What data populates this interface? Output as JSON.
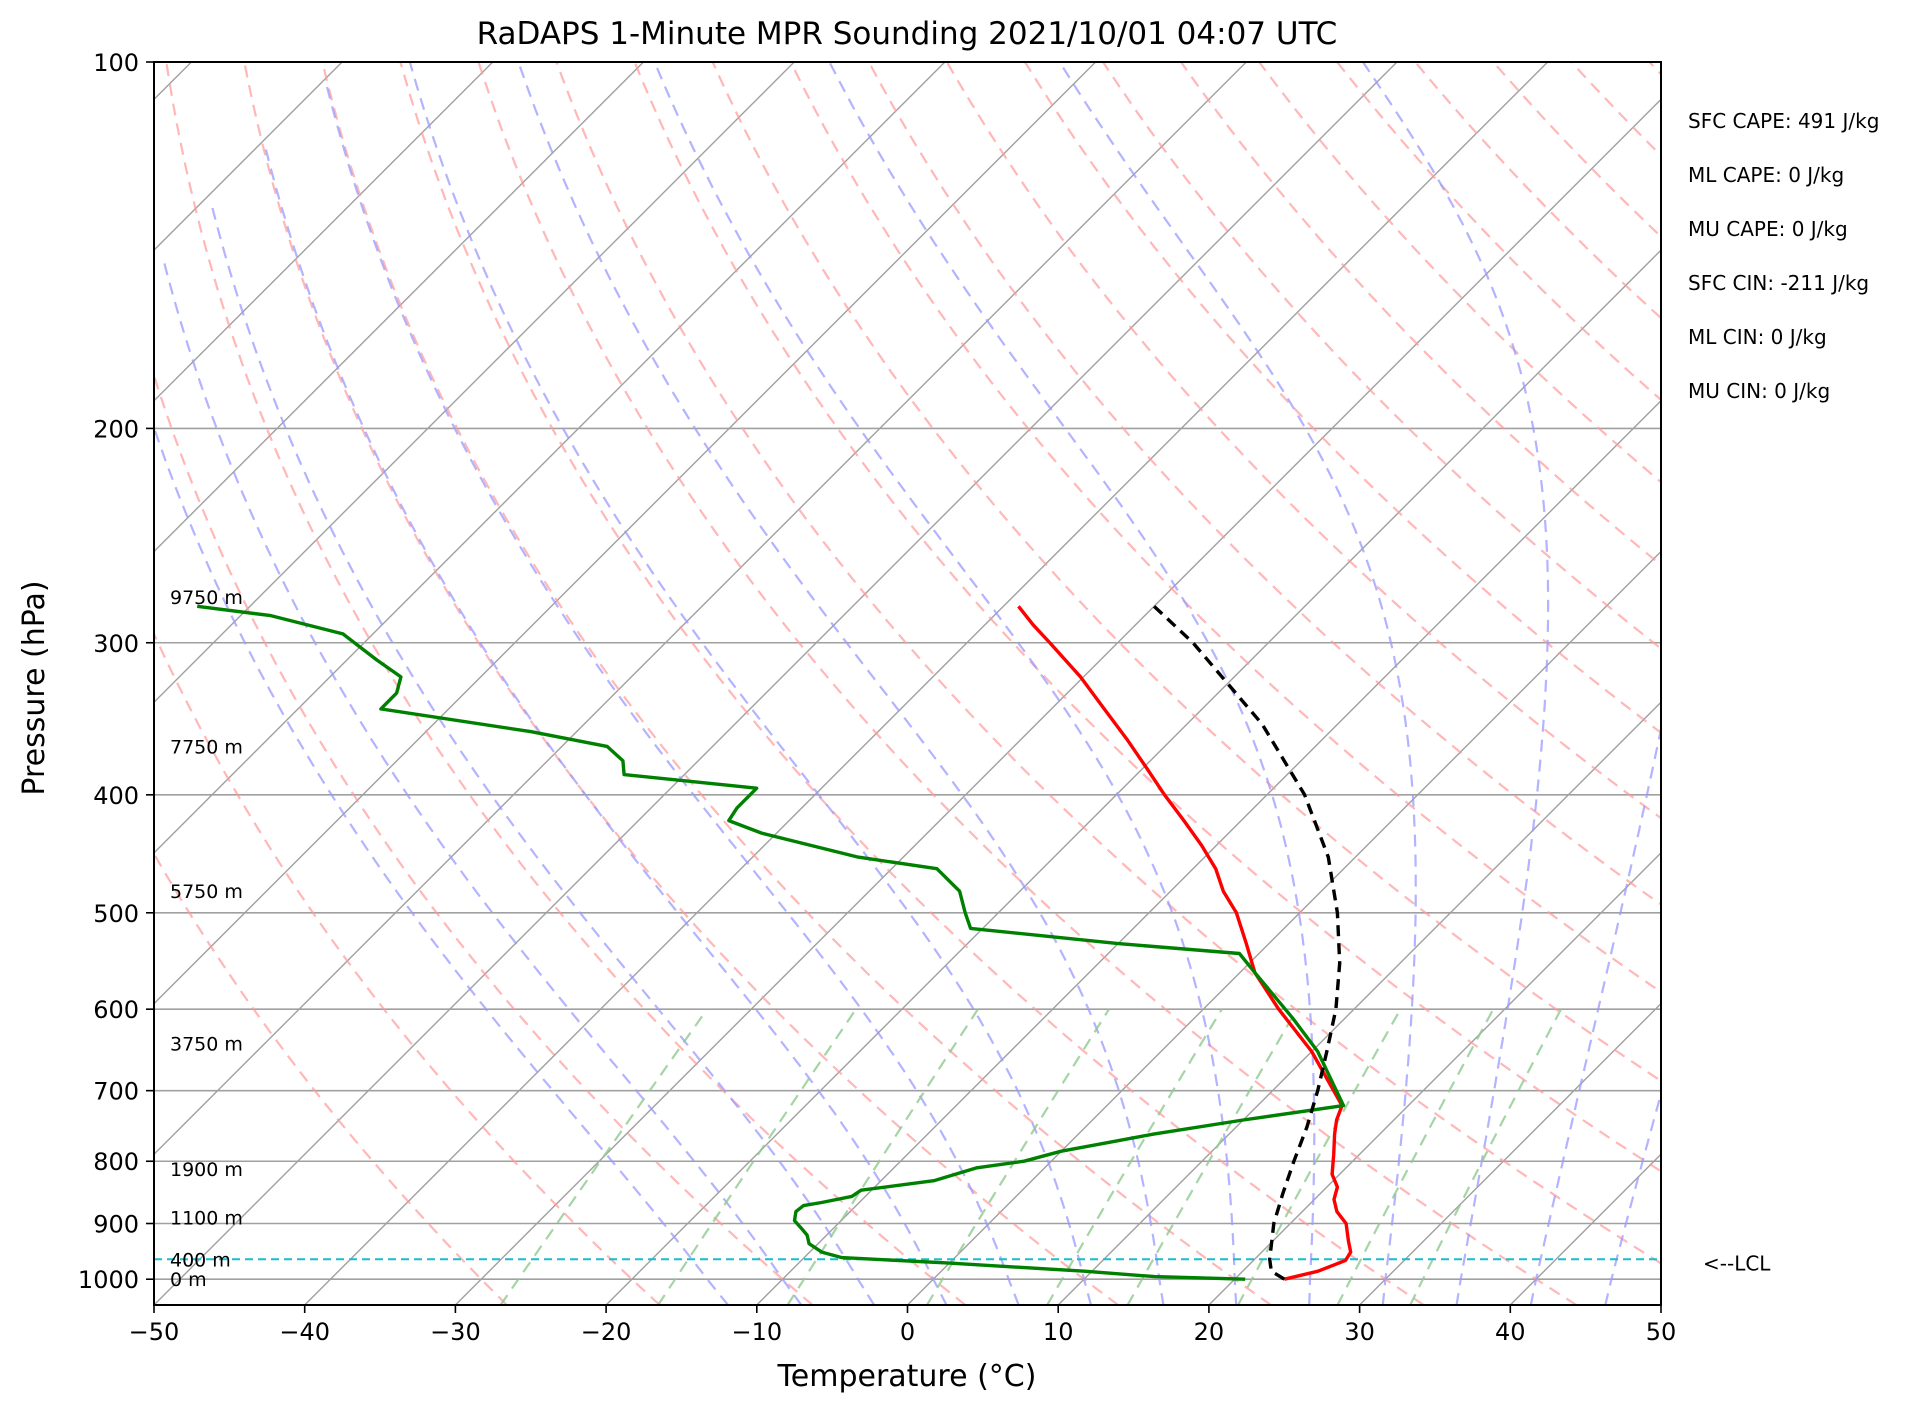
{
  "chart_data": {
    "type": "line",
    "title": "RaDAPS 1-Minute MPR Sounding 2021/10/01 04:07 UTC",
    "xlabel": "Temperature (°C)",
    "ylabel": "Pressure (hPa)",
    "xlim": [
      -50,
      50
    ],
    "ylim": [
      1050,
      100
    ],
    "y_scale": "log",
    "skew": "skew-T log-P",
    "xticks": [
      -50,
      -40,
      -30,
      -20,
      -10,
      0,
      10,
      20,
      30,
      40,
      50
    ],
    "xtick_labels": [
      "−50",
      "−40",
      "−30",
      "−20",
      "−10",
      "0",
      "10",
      "20",
      "30",
      "40",
      "50"
    ],
    "yticks": [
      100,
      200,
      300,
      400,
      500,
      600,
      700,
      800,
      900,
      1000
    ],
    "ytick_labels": [
      "100",
      "200",
      "300",
      "400",
      "500",
      "600",
      "700",
      "800",
      "900",
      "1000"
    ],
    "grid": true,
    "colors": {
      "temperature": "#ff0000",
      "dewpoint": "#008000",
      "parcel": "#000000",
      "lcl": "#17becf",
      "dry_adiabat": "#ff9999",
      "moist_adiabat": "#9999ff",
      "mixing_ratio": "#8fc98f",
      "isotherm": "#a0a0a0"
    },
    "series": [
      {
        "name": "Temperature",
        "points": [
          {
            "p": 1000,
            "t": 23.3
          },
          {
            "p": 985,
            "t": 25.0
          },
          {
            "p": 965,
            "t": 26.1
          },
          {
            "p": 950,
            "t": 25.9
          },
          {
            "p": 930,
            "t": 25.0
          },
          {
            "p": 900,
            "t": 23.7
          },
          {
            "p": 880,
            "t": 22.3
          },
          {
            "p": 860,
            "t": 21.3
          },
          {
            "p": 840,
            "t": 20.7
          },
          {
            "p": 820,
            "t": 19.5
          },
          {
            "p": 790,
            "t": 18.3
          },
          {
            "p": 760,
            "t": 17.0
          },
          {
            "p": 740,
            "t": 16.2
          },
          {
            "p": 720,
            "t": 15.6
          },
          {
            "p": 650,
            "t": 10.0
          },
          {
            "p": 600,
            "t": 5.0
          },
          {
            "p": 560,
            "t": 1.0
          },
          {
            "p": 530,
            "t": -1.5
          },
          {
            "p": 500,
            "t": -4.2
          },
          {
            "p": 480,
            "t": -6.5
          },
          {
            "p": 460,
            "t": -8.5
          },
          {
            "p": 440,
            "t": -11.0
          },
          {
            "p": 420,
            "t": -13.8
          },
          {
            "p": 400,
            "t": -16.8
          },
          {
            "p": 380,
            "t": -19.8
          },
          {
            "p": 360,
            "t": -23.0
          },
          {
            "p": 340,
            "t": -26.5
          },
          {
            "p": 320,
            "t": -30.2
          },
          {
            "p": 300,
            "t": -34.5
          },
          {
            "p": 290,
            "t": -36.8
          },
          {
            "p": 280,
            "t": -39.0
          }
        ]
      },
      {
        "name": "Dewpoint",
        "points": [
          {
            "p": 1000,
            "t": 20.7
          },
          {
            "p": 995,
            "t": 14.5
          },
          {
            "p": 985,
            "t": 9.5
          },
          {
            "p": 970,
            "t": 0.0
          },
          {
            "p": 960,
            "t": -7.5
          },
          {
            "p": 950,
            "t": -9.2
          },
          {
            "p": 935,
            "t": -10.6
          },
          {
            "p": 920,
            "t": -11.3
          },
          {
            "p": 910,
            "t": -12.0
          },
          {
            "p": 895,
            "t": -13.1
          },
          {
            "p": 880,
            "t": -13.6
          },
          {
            "p": 870,
            "t": -13.5
          },
          {
            "p": 865,
            "t": -12.5
          },
          {
            "p": 855,
            "t": -10.9
          },
          {
            "p": 845,
            "t": -10.7
          },
          {
            "p": 830,
            "t": -6.5
          },
          {
            "p": 810,
            "t": -4.5
          },
          {
            "p": 800,
            "t": -1.8
          },
          {
            "p": 785,
            "t": 0.0
          },
          {
            "p": 760,
            "t": 5.0
          },
          {
            "p": 740,
            "t": 10.0
          },
          {
            "p": 720,
            "t": 15.7
          },
          {
            "p": 650,
            "t": 10.4
          },
          {
            "p": 610,
            "t": 6.5
          },
          {
            "p": 560,
            "t": 1.0
          },
          {
            "p": 540,
            "t": -1.3
          },
          {
            "p": 530,
            "t": -10.0
          },
          {
            "p": 515,
            "t": -20.8
          },
          {
            "p": 500,
            "t": -22.2
          },
          {
            "p": 480,
            "t": -24.0
          },
          {
            "p": 460,
            "t": -27.0
          },
          {
            "p": 450,
            "t": -33.0
          },
          {
            "p": 430,
            "t": -41.0
          },
          {
            "p": 420,
            "t": -44.0
          },
          {
            "p": 410,
            "t": -44.3
          },
          {
            "p": 395,
            "t": -44.3
          },
          {
            "p": 385,
            "t": -54.0
          },
          {
            "p": 375,
            "t": -55.0
          },
          {
            "p": 365,
            "t": -57.0
          },
          {
            "p": 355,
            "t": -63.0
          },
          {
            "p": 340,
            "t": -74.5
          },
          {
            "p": 330,
            "t": -74.5
          },
          {
            "p": 320,
            "t": -75.3
          },
          {
            "p": 310,
            "t": -78.0
          },
          {
            "p": 295,
            "t": -82.0
          },
          {
            "p": 285,
            "t": -88.0
          },
          {
            "p": 280,
            "t": -93.5
          }
        ]
      },
      {
        "name": "Parcel",
        "points": [
          {
            "p": 1000,
            "t": 23.3
          },
          {
            "p": 985,
            "t": 21.9
          },
          {
            "p": 963,
            "t": 21.0
          },
          {
            "p": 900,
            "t": 18.9
          },
          {
            "p": 850,
            "t": 17.5
          },
          {
            "p": 800,
            "t": 16.1
          },
          {
            "p": 750,
            "t": 14.7
          },
          {
            "p": 700,
            "t": 13.0
          },
          {
            "p": 650,
            "t": 11.0
          },
          {
            "p": 600,
            "t": 8.8
          },
          {
            "p": 550,
            "t": 6.0
          },
          {
            "p": 500,
            "t": 2.5
          },
          {
            "p": 450,
            "t": -1.8
          },
          {
            "p": 400,
            "t": -7.5
          },
          {
            "p": 350,
            "t": -15.0
          },
          {
            "p": 300,
            "t": -25.0
          },
          {
            "p": 280,
            "t": -30.0
          }
        ]
      }
    ],
    "lcl_pressure": 963,
    "lcl_label": "<--LCL",
    "height_labels": [
      {
        "text": "0 m",
        "p": 1000
      },
      {
        "text": "400 m",
        "p": 963
      },
      {
        "text": "1100 m",
        "p": 890
      },
      {
        "text": "1900 m",
        "p": 812
      },
      {
        "text": "3750 m",
        "p": 640
      },
      {
        "text": "5750 m",
        "p": 480
      },
      {
        "text": "7750 m",
        "p": 365
      },
      {
        "text": "9750 m",
        "p": 275
      }
    ],
    "stats": [
      "SFC CAPE: 491 J/kg",
      "ML CAPE: 0 J/kg",
      "MU CAPE: 0 J/kg",
      "SFC CIN: -211 J/kg",
      "ML CIN: 0 J/kg",
      "MU CIN: 0 J/kg"
    ]
  }
}
